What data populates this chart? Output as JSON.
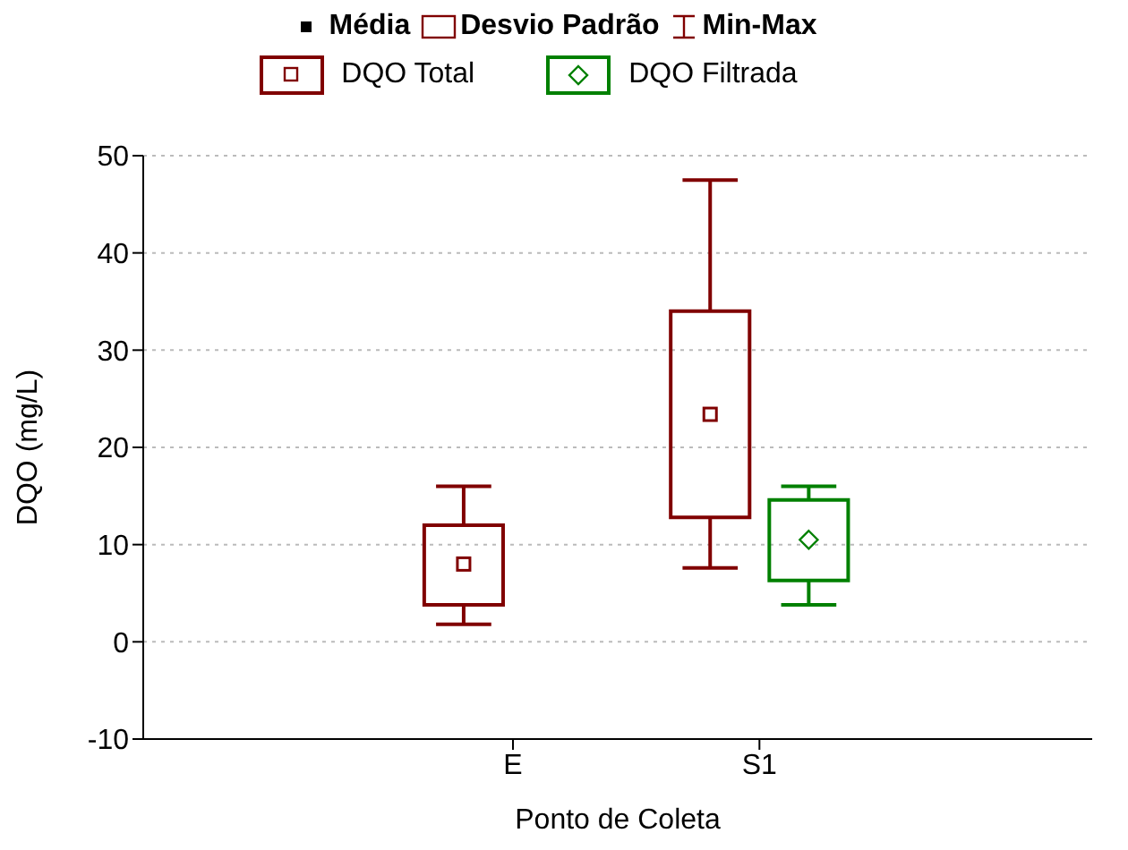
{
  "chart_data": {
    "type": "box",
    "xlabel": "Ponto de Coleta",
    "ylabel": "DQO (mg/L)",
    "categories": [
      "E",
      "S1"
    ],
    "series": [
      {
        "name": "DQO Total",
        "color": "#800000",
        "marker": "square",
        "boxes": [
          {
            "low": 1.8,
            "q1": 3.8,
            "median": 8,
            "q3": 12,
            "high": 16
          },
          {
            "low": 7.6,
            "q1": 12.8,
            "median": 23.4,
            "q3": 34,
            "high": 47.5
          }
        ]
      },
      {
        "name": "DQO Filtrada",
        "color": "#008000",
        "marker": "diamond",
        "boxes": [
          null,
          {
            "low": 3.8,
            "q1": 6.3,
            "median": 10.5,
            "q3": 14.6,
            "high": 16
          }
        ]
      }
    ],
    "annotations": [
      "Média",
      "Desvio Padrão",
      "Min-Max"
    ],
    "ylim": [
      -10,
      50
    ],
    "yticks": [
      -10,
      0,
      10,
      20,
      30,
      40,
      50
    ],
    "grid": "y",
    "legend": "top"
  }
}
